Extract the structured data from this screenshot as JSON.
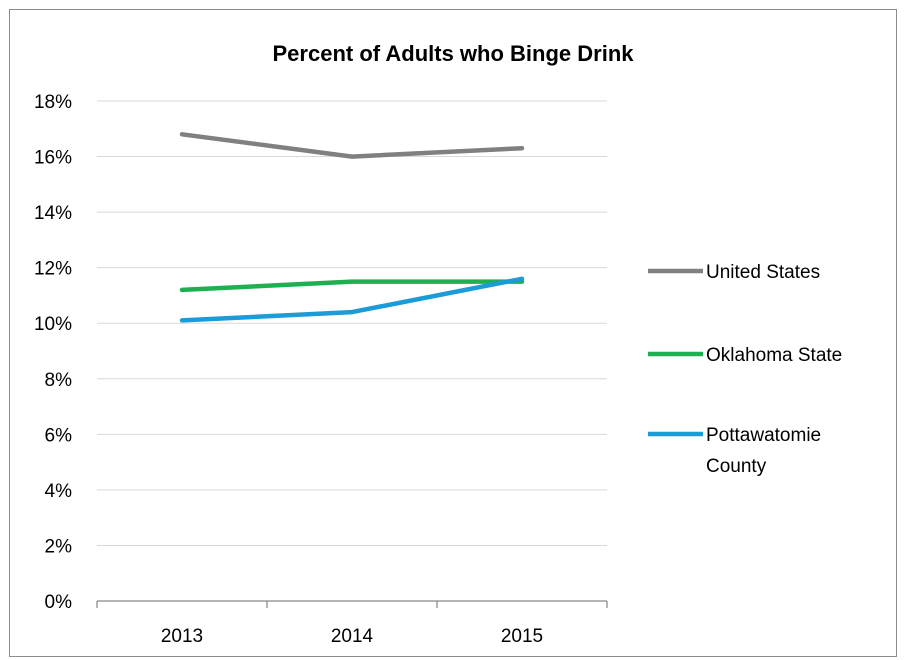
{
  "chart_data": {
    "type": "line",
    "title": "Percent of Adults who Binge Drink",
    "xlabel": "",
    "ylabel": "",
    "categories": [
      "2013",
      "2014",
      "2015"
    ],
    "ylim": [
      0,
      18
    ],
    "yticks": [
      0,
      2,
      4,
      6,
      8,
      10,
      12,
      14,
      16,
      18
    ],
    "ytick_format": "%",
    "grid": true,
    "legend_position": "right",
    "series": [
      {
        "name": "United States",
        "color": "#808080",
        "values": [
          16.8,
          16.0,
          16.3
        ]
      },
      {
        "name": "Oklahoma State",
        "color": "#1eb050",
        "values": [
          11.2,
          11.5,
          11.5
        ]
      },
      {
        "name": "Pottawatomie County",
        "color": "#1b9bd7",
        "values": [
          10.1,
          10.4,
          11.6
        ]
      }
    ]
  }
}
